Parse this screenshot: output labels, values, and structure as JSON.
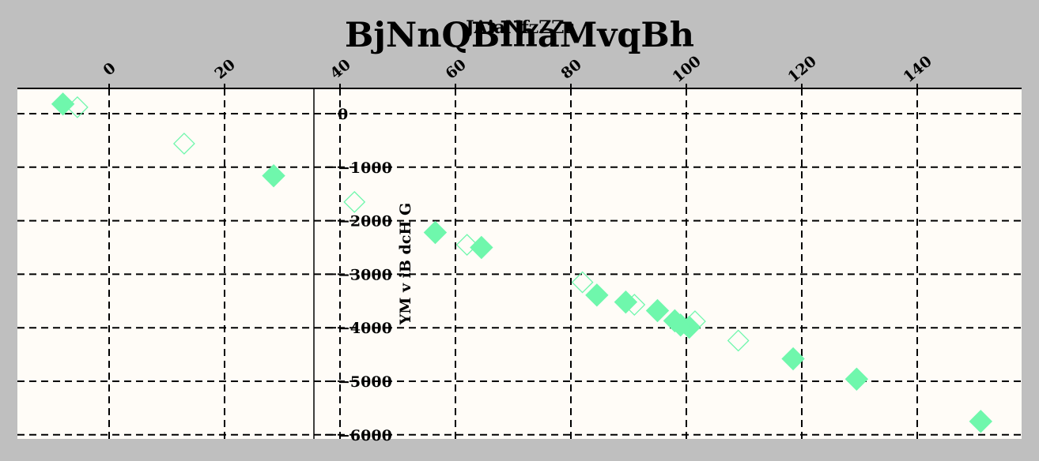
{
  "chart_data": {
    "type": "scatter",
    "title": "BjNnQBlhaMvqBh",
    "subtitle": "JAiaNfzZZr",
    "xlabel": "",
    "ylabel": "YM v iB dcH G",
    "xlim": [
      -16,
      158
    ],
    "ylim": [
      -6000,
      470
    ],
    "x_ticks": [
      0,
      20,
      40,
      60,
      80,
      100,
      120,
      140
    ],
    "y_ticks": [
      0,
      -1000,
      -2000,
      -3000,
      -4000,
      -5000,
      -6000
    ],
    "grid": true,
    "plot_background": "#fffcf7",
    "figure_background": "#bfbfbf",
    "series": [
      {
        "marker": "filled-diamond",
        "color": "#6ff7ac",
        "points": [
          {
            "x": -8,
            "y": 180
          },
          {
            "x": 28.5,
            "y": -1160
          },
          {
            "x": 56.5,
            "y": -2220
          },
          {
            "x": 64.5,
            "y": -2500
          },
          {
            "x": 84.5,
            "y": -3390
          },
          {
            "x": 89.5,
            "y": -3520
          },
          {
            "x": 95,
            "y": -3680
          },
          {
            "x": 98,
            "y": -3870
          },
          {
            "x": 99,
            "y": -3950
          },
          {
            "x": 100.5,
            "y": -3990
          },
          {
            "x": 118.5,
            "y": -4580
          },
          {
            "x": 129.5,
            "y": -4960
          },
          {
            "x": 151,
            "y": -5750
          }
        ]
      },
      {
        "marker": "hollow-diamond",
        "color": "#6ff7ac",
        "points": [
          {
            "x": -5.5,
            "y": 120
          },
          {
            "x": 13,
            "y": -560
          },
          {
            "x": 42.5,
            "y": -1650
          },
          {
            "x": 62,
            "y": -2450
          },
          {
            "x": 82,
            "y": -3150
          },
          {
            "x": 91,
            "y": -3570
          },
          {
            "x": 101.5,
            "y": -3880
          },
          {
            "x": 109,
            "y": -4240
          }
        ]
      }
    ]
  }
}
